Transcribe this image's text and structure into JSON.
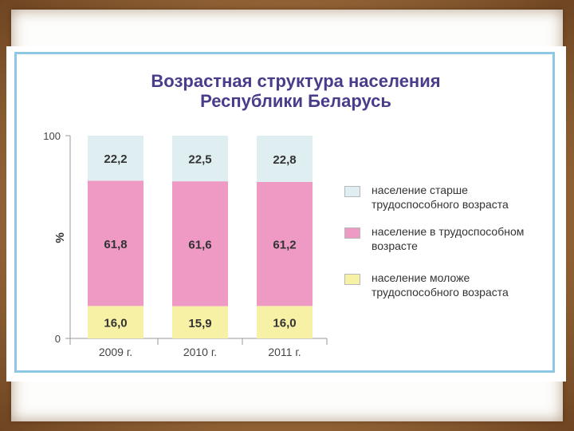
{
  "colors": {
    "older": "#deeef1",
    "working": "#ee9ac4",
    "younger": "#f7f1a6",
    "title": "#4a3c8a",
    "frame": "#8fc7e6"
  },
  "chart_data": {
    "type": "bar",
    "stacked": true,
    "title_lines": [
      "Возрастная структура населения",
      "Республики Беларусь"
    ],
    "ylabel": "%",
    "ylim": [
      0,
      100
    ],
    "yticks": [
      "0",
      "100"
    ],
    "categories": [
      "2009 г.",
      "2010 г.",
      "2011 г."
    ],
    "series": [
      {
        "name": "население моложе трудоспособного возраста",
        "values": [
          16.0,
          15.9,
          16.0
        ],
        "labels": [
          "16,0",
          "15,9",
          "16,0"
        ],
        "color_key": "younger"
      },
      {
        "name": "население в трудоспособном возрасте",
        "values": [
          61.8,
          61.6,
          61.2
        ],
        "labels": [
          "61,8",
          "61,6",
          "61,2"
        ],
        "color_key": "working"
      },
      {
        "name": "население старше трудоспособного возраста",
        "values": [
          22.2,
          22.5,
          22.8
        ],
        "labels": [
          "22,2",
          "22,5",
          "22,8"
        ],
        "color_key": "older"
      }
    ],
    "legend": {
      "placement": "right",
      "items": [
        {
          "lines": [
            "население старше",
            "трудоспособного возраста"
          ],
          "color_key": "older"
        },
        {
          "lines": [
            "население в трудоспособном",
            "возрасте"
          ],
          "color_key": "working"
        },
        {
          "lines": [
            "население моложе",
            "трудоспособного возраста"
          ],
          "color_key": "younger"
        }
      ]
    }
  }
}
